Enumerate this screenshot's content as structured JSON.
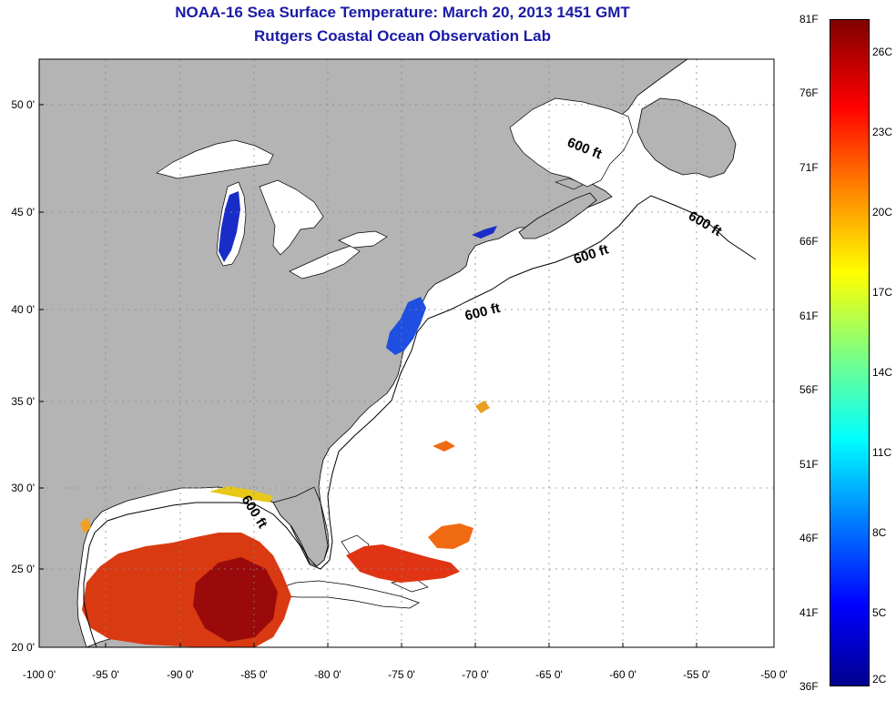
{
  "header": {
    "title": "NOAA-16 Sea Surface Temperature:  March 20, 2013 1451 GMT",
    "subtitle": "Rutgers Coastal Ocean Observation Lab"
  },
  "map": {
    "lon_range": [
      -100,
      -50
    ],
    "lat_range": [
      20,
      52.5
    ],
    "lon_ticks": [
      "-100 0'",
      "-95 0'",
      "-90 0'",
      "-85 0'",
      "-80 0'",
      "-75 0'",
      "-70 0'",
      "-65 0'",
      "-60 0'",
      "-55 0'",
      "-50 0'"
    ],
    "lat_ticks": [
      "20 0'",
      "25 0'",
      "30 0'",
      "35 0'",
      "40 0'",
      "45 0'",
      "50 0'"
    ],
    "contour_labels": [
      "600 ft",
      "600 ft",
      "600 ft",
      "600 ft",
      "600 ft"
    ],
    "colors": {
      "land": "#b4b4b4",
      "no_data": "#ffffff",
      "coastline": "#000000"
    }
  },
  "colorbar": {
    "f_labels": [
      "81F",
      "76F",
      "71F",
      "66F",
      "61F",
      "56F",
      "51F",
      "46F",
      "41F",
      "36F"
    ],
    "c_labels": [
      "26C",
      "23C",
      "20C",
      "17C",
      "14C",
      "11C",
      "8C",
      "5C",
      "2C"
    ],
    "colormap": [
      "#00008f",
      "#0000ff",
      "#0080ff",
      "#00ffff",
      "#80ff80",
      "#ffff00",
      "#ff8000",
      "#ff0000",
      "#800000"
    ]
  }
}
